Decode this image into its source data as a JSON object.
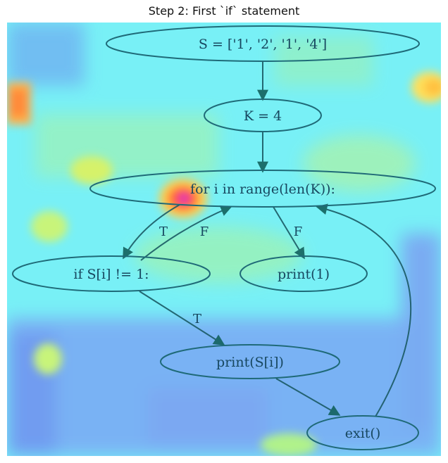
{
  "figure": {
    "title": "Step 2: First `if` statement"
  },
  "nodes": {
    "assign_s": "S = ['1', '2', '1', '4']",
    "assign_k": "K = 4",
    "for_loop": "for i in range(len(K)):",
    "if_stmt": "if S[i] != 1:",
    "print_one": "print(1)",
    "print_si": "print(S[i])",
    "exit_call": "exit()"
  },
  "edge_labels": {
    "for_to_if": "T",
    "if_to_for": "F",
    "for_to_print_one": "F",
    "if_to_print_si": "T"
  },
  "colors": {
    "node_stroke": "#1f6a78",
    "edge_stroke": "#1a5a64",
    "heatmap_base": "#78f0f6",
    "heatmap_hot": "#ff3a2e"
  }
}
